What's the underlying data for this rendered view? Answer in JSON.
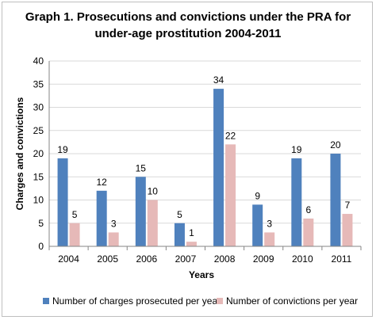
{
  "chart_data": {
    "type": "bar",
    "title_lines": [
      "Graph 1. Prosecutions and convictions under the PRA for",
      "under-age prostitution 2004-2011"
    ],
    "xlabel": "Years",
    "ylabel": "Charges and convictions",
    "categories": [
      "2004",
      "2005",
      "2006",
      "2007",
      "2008",
      "2009",
      "2010",
      "2011"
    ],
    "series": [
      {
        "name": "Number of charges prosecuted per year",
        "color": "#4f81bd",
        "values": [
          19,
          12,
          15,
          5,
          34,
          9,
          19,
          20
        ]
      },
      {
        "name": "Number of convictions per year",
        "color": "#e6b9b8",
        "values": [
          5,
          3,
          10,
          1,
          22,
          3,
          6,
          7
        ]
      }
    ],
    "ylim": [
      0,
      40
    ],
    "yticks": [
      0,
      5,
      10,
      15,
      20,
      25,
      30,
      35,
      40
    ],
    "grid": true,
    "legend_position": "bottom"
  }
}
